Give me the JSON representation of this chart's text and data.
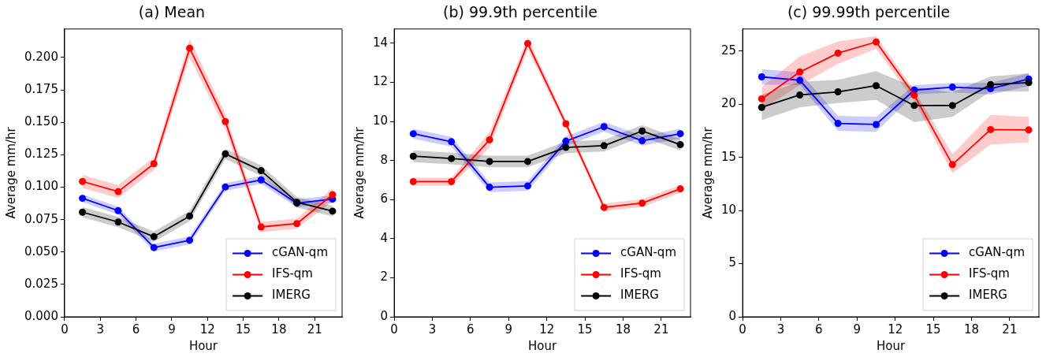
{
  "chart_data": [
    {
      "type": "line",
      "title": "(a) Mean",
      "xlabel": "Hour",
      "ylabel": "Average mm/hr",
      "x": [
        1.5,
        4.5,
        7.5,
        10.5,
        13.5,
        16.5,
        19.5,
        22.5
      ],
      "xlim": [
        0,
        23.3
      ],
      "xticks": [
        0,
        3,
        6,
        9,
        12,
        15,
        18,
        21
      ],
      "ylim": [
        0,
        0.222
      ],
      "yticks": [
        {
          "value": 0,
          "label": "0.000"
        },
        {
          "value": 0.025,
          "label": "0.025"
        },
        {
          "value": 0.05,
          "label": "0.050"
        },
        {
          "value": 0.075,
          "label": "0.075"
        },
        {
          "value": 0.1,
          "label": "0.100"
        },
        {
          "value": 0.125,
          "label": "0.125"
        },
        {
          "value": 0.15,
          "label": "0.150"
        },
        {
          "value": 0.175,
          "label": "0.175"
        },
        {
          "value": 0.2,
          "label": "0.200"
        }
      ],
      "grid": false,
      "legend": "bottom right",
      "marker": "circle",
      "series": [
        {
          "name": "cGAN-qm",
          "color": "#0000ff",
          "values": [
            0.0914,
            0.0819,
            0.0534,
            0.059,
            0.1002,
            0.1056,
            0.0876,
            0.0908
          ],
          "lower": [
            0.0884,
            0.0789,
            0.0504,
            0.056,
            0.0972,
            0.1026,
            0.0846,
            0.0878
          ],
          "upper": [
            0.0944,
            0.0849,
            0.0564,
            0.062,
            0.1032,
            0.1086,
            0.0906,
            0.0938
          ]
        },
        {
          "name": "IFS-qm",
          "color": "#ff0000",
          "values": [
            0.1044,
            0.0966,
            0.1181,
            0.2072,
            0.1506,
            0.0693,
            0.0719,
            0.0942
          ],
          "lower": [
            0.0994,
            0.0916,
            0.1131,
            0.2002,
            0.1446,
            0.0653,
            0.0679,
            0.0892
          ],
          "upper": [
            0.1094,
            0.1016,
            0.1231,
            0.2142,
            0.1566,
            0.0733,
            0.0759,
            0.0992
          ]
        },
        {
          "name": "IMERG",
          "color": "#000000",
          "values": [
            0.0807,
            0.0731,
            0.0618,
            0.0777,
            0.1257,
            0.1127,
            0.0884,
            0.0815
          ],
          "lower": [
            0.0767,
            0.0691,
            0.0578,
            0.0737,
            0.1217,
            0.1087,
            0.0844,
            0.0775
          ],
          "upper": [
            0.0847,
            0.0771,
            0.0658,
            0.0817,
            0.1297,
            0.1167,
            0.0924,
            0.0855
          ]
        }
      ]
    },
    {
      "type": "line",
      "title": "(b) 99.9th percentile",
      "xlabel": "Hour",
      "ylabel": "Average mm/hr",
      "x": [
        1.5,
        4.5,
        7.5,
        10.5,
        13.5,
        16.5,
        19.5,
        22.5
      ],
      "xlim": [
        0,
        23.3
      ],
      "xticks": [
        0,
        3,
        6,
        9,
        12,
        15,
        18,
        21
      ],
      "ylim": [
        0,
        14.73
      ],
      "yticks": [
        0,
        2,
        4,
        6,
        8,
        10,
        12,
        14
      ],
      "grid": false,
      "legend": "bottom right",
      "marker": "circle",
      "series": [
        {
          "name": "cGAN-qm",
          "color": "#0000ff",
          "values": [
            9.37,
            8.96,
            6.63,
            6.7,
            8.99,
            9.73,
            9.01,
            9.37
          ],
          "lower": [
            9.12,
            8.71,
            6.38,
            6.45,
            8.74,
            9.48,
            8.76,
            9.12
          ],
          "upper": [
            9.62,
            9.21,
            6.88,
            6.95,
            9.24,
            9.98,
            9.26,
            9.62
          ]
        },
        {
          "name": "IFS-qm",
          "color": "#ff0000",
          "values": [
            6.92,
            6.92,
            9.06,
            13.99,
            9.88,
            5.6,
            5.82,
            6.55
          ],
          "lower": [
            6.72,
            6.72,
            8.66,
            13.69,
            9.68,
            5.4,
            5.62,
            6.35
          ],
          "upper": [
            7.12,
            7.12,
            9.46,
            14.29,
            10.08,
            5.8,
            6.02,
            6.75
          ]
        },
        {
          "name": "IMERG",
          "color": "#000000",
          "values": [
            8.22,
            8.1,
            7.95,
            7.95,
            8.67,
            8.76,
            9.51,
            8.81
          ],
          "lower": [
            7.92,
            7.8,
            7.65,
            7.65,
            8.37,
            8.46,
            9.21,
            8.51
          ],
          "upper": [
            8.52,
            8.4,
            8.25,
            8.25,
            8.97,
            9.06,
            9.81,
            9.11
          ]
        }
      ]
    },
    {
      "type": "line",
      "title": "(c) 99.99th percentile",
      "xlabel": "Hour",
      "ylabel": "Average mm/hr",
      "x": [
        1.5,
        4.5,
        7.5,
        10.5,
        13.5,
        16.5,
        19.5,
        22.5
      ],
      "xlim": [
        0,
        23.3
      ],
      "xticks": [
        0,
        3,
        6,
        9,
        12,
        15,
        18,
        21
      ],
      "ylim": [
        0,
        27.07
      ],
      "yticks": [
        0,
        5,
        10,
        15,
        20,
        25
      ],
      "grid": false,
      "legend": "bottom right",
      "marker": "circle",
      "series": [
        {
          "name": "cGAN-qm",
          "color": "#0000ff",
          "values": [
            22.57,
            22.25,
            18.19,
            18.09,
            21.33,
            21.6,
            21.45,
            22.37
          ],
          "lower": [
            21.84,
            21.8,
            17.5,
            17.4,
            20.9,
            21.1,
            20.9,
            21.7
          ],
          "upper": [
            23.3,
            23.0,
            18.9,
            18.8,
            21.8,
            22.0,
            22.0,
            22.9
          ]
        },
        {
          "name": "IFS-qm",
          "color": "#ff0000",
          "values": [
            20.5,
            23.03,
            24.8,
            25.85,
            20.84,
            14.32,
            17.61,
            17.58
          ],
          "lower": [
            19.5,
            21.8,
            23.8,
            25.2,
            20.3,
            13.5,
            16.2,
            16.4
          ],
          "upper": [
            21.6,
            24.5,
            25.9,
            26.4,
            21.3,
            15.3,
            19.0,
            18.8
          ]
        },
        {
          "name": "IMERG",
          "color": "#000000",
          "values": [
            19.7,
            20.87,
            21.16,
            21.74,
            19.87,
            19.87,
            21.84,
            22.03
          ],
          "lower": [
            18.5,
            19.7,
            20.1,
            20.4,
            18.3,
            18.8,
            21.2,
            21.2
          ],
          "upper": [
            20.9,
            22.1,
            22.3,
            23.1,
            21.6,
            21.1,
            22.6,
            22.9
          ]
        }
      ]
    }
  ]
}
